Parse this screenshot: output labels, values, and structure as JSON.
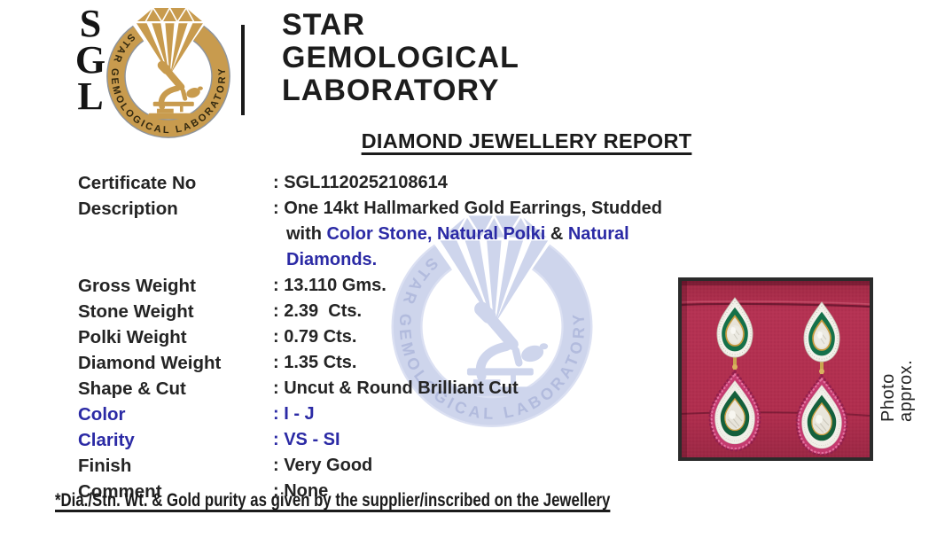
{
  "header": {
    "logo_monogram": [
      "S",
      "G",
      "L"
    ],
    "logo_ring_text": "STAR GEMOLOGICAL LABORATORY",
    "org_name_lines": [
      "STAR",
      "GEMOLOGICAL",
      "LABORATORY"
    ],
    "report_title": "DIAMOND JEWELLERY REPORT"
  },
  "report": {
    "fields": [
      {
        "id": "certificate-no",
        "label": "Certificate No",
        "label_blue": false,
        "lines": [
          [
            {
              "t": ": SGL1120252108614",
              "blue": false
            }
          ]
        ]
      },
      {
        "id": "description",
        "label": "Description",
        "label_blue": false,
        "lines": [
          [
            {
              "t": ": One 14kt Hallmarked Gold Earrings, Studded",
              "blue": false
            }
          ],
          [
            {
              "t": "with ",
              "blue": false
            },
            {
              "t": "Color Stone,",
              "blue": true
            },
            {
              "t": " ",
              "blue": false
            },
            {
              "t": "Natural Polki",
              "blue": true
            },
            {
              "t": " & ",
              "blue": false
            },
            {
              "t": "Natural Diamonds.",
              "blue": true
            }
          ]
        ]
      },
      {
        "id": "gross-weight",
        "label": "Gross Weight",
        "label_blue": false,
        "lines": [
          [
            {
              "t": ": 13.110 Gms.",
              "blue": false
            }
          ]
        ]
      },
      {
        "id": "stone-weight",
        "label": "Stone Weight",
        "label_blue": false,
        "lines": [
          [
            {
              "t": ": 2.39  Cts.",
              "blue": false
            }
          ]
        ]
      },
      {
        "id": "polki-weight",
        "label": "Polki Weight",
        "label_blue": false,
        "lines": [
          [
            {
              "t": ": 0.79 Cts.",
              "blue": false
            }
          ]
        ]
      },
      {
        "id": "diamond-weight",
        "label": "Diamond Weight",
        "label_blue": false,
        "lines": [
          [
            {
              "t": ": 1.35 Cts.",
              "blue": false
            }
          ]
        ]
      },
      {
        "id": "shape-cut",
        "label": "Shape & Cut",
        "label_blue": false,
        "lines": [
          [
            {
              "t": ": Uncut & Round Brilliant Cut",
              "blue": false
            }
          ]
        ]
      },
      {
        "id": "color",
        "label": "Color",
        "label_blue": true,
        "lines": [
          [
            {
              "t": ": I - J",
              "blue": true
            }
          ]
        ]
      },
      {
        "id": "clarity",
        "label": "Clarity",
        "label_blue": true,
        "lines": [
          [
            {
              "t": ": VS - SI",
              "blue": true
            }
          ]
        ]
      },
      {
        "id": "finish",
        "label": "Finish",
        "label_blue": false,
        "lines": [
          [
            {
              "t": ": Very Good",
              "blue": false
            }
          ]
        ]
      },
      {
        "id": "comment",
        "label": "Comment",
        "label_blue": false,
        "lines": [
          [
            {
              "t": ": None",
              "blue": false
            }
          ]
        ]
      }
    ]
  },
  "photo": {
    "caption": "Photo approx."
  },
  "footer": {
    "disclaimer": "*Dia./Stn. Wt. & Gold purity as given by the supplier/inscribed on the Jewellery"
  },
  "colors": {
    "accent_blue": "#2b2aa5",
    "logo_gold": "#c89b4e",
    "logo_ring_letters": "#32280f",
    "logo_rim_gray": "#8e949c",
    "watermark_band": "#ccd3ec",
    "watermark_letters": "#aeb8dc",
    "watermark_rim": "#dadff2",
    "photo_red": "#b02e4e",
    "enamel_green": "#15714a",
    "ruby_pink": "#c43a6f"
  }
}
